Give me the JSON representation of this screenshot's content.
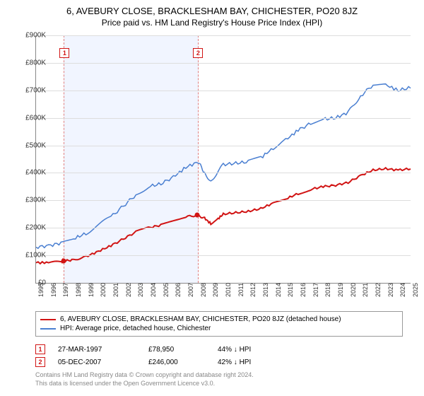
{
  "title": "6, AVEBURY CLOSE, BRACKLESHAM BAY, CHICHESTER, PO20 8JZ",
  "subtitle": "Price paid vs. HM Land Registry's House Price Index (HPI)",
  "chart": {
    "type": "line",
    "background_color": "#ffffff",
    "grid_color": "#dddddd",
    "yaxis": {
      "min": 0,
      "max": 900000,
      "tick_step": 100000,
      "tick_labels": [
        "£0",
        "£100K",
        "£200K",
        "£300K",
        "£400K",
        "£500K",
        "£600K",
        "£700K",
        "£800K",
        "£900K"
      ]
    },
    "xaxis": {
      "min": 1995,
      "max": 2025,
      "tick_step": 1,
      "tick_labels": [
        "1995",
        "1996",
        "1997",
        "1998",
        "1999",
        "2000",
        "2001",
        "2002",
        "2003",
        "2004",
        "2005",
        "2006",
        "2007",
        "2008",
        "2009",
        "2010",
        "2011",
        "2012",
        "2013",
        "2014",
        "2015",
        "2016",
        "2017",
        "2018",
        "2019",
        "2020",
        "2021",
        "2022",
        "2023",
        "2024",
        "2025"
      ]
    },
    "shaded_span": {
      "from": 1997.23,
      "to": 2007.93
    },
    "series": [
      {
        "name": "6, AVEBURY CLOSE, BRACKLESHAM BAY, CHICHESTER, PO20 8JZ (detached house)",
        "color": "#d11414",
        "line_width": 2,
        "points": [
          [
            1995.0,
            73000
          ],
          [
            1996.0,
            74000
          ],
          [
            1997.0,
            76000
          ],
          [
            1997.23,
            78950
          ],
          [
            1998.0,
            84000
          ],
          [
            1999.0,
            95000
          ],
          [
            2000.0,
            115000
          ],
          [
            2001.0,
            135000
          ],
          [
            2002.0,
            160000
          ],
          [
            2003.0,
            185000
          ],
          [
            2004.0,
            200000
          ],
          [
            2005.0,
            210000
          ],
          [
            2006.0,
            225000
          ],
          [
            2007.0,
            240000
          ],
          [
            2007.93,
            246000
          ],
          [
            2008.5,
            235000
          ],
          [
            2009.0,
            215000
          ],
          [
            2009.5,
            230000
          ],
          [
            2010.0,
            250000
          ],
          [
            2011.0,
            255000
          ],
          [
            2012.0,
            260000
          ],
          [
            2013.0,
            270000
          ],
          [
            2014.0,
            290000
          ],
          [
            2015.0,
            305000
          ],
          [
            2016.0,
            325000
          ],
          [
            2017.0,
            340000
          ],
          [
            2018.0,
            350000
          ],
          [
            2019.0,
            355000
          ],
          [
            2020.0,
            365000
          ],
          [
            2021.0,
            390000
          ],
          [
            2022.0,
            410000
          ],
          [
            2023.0,
            415000
          ],
          [
            2024.0,
            410000
          ],
          [
            2025.0,
            415000
          ]
        ]
      },
      {
        "name": "HPI: Average price, detached house, Chichester",
        "color": "#4a7fd1",
        "line_width": 1.5,
        "points": [
          [
            1995.0,
            130000
          ],
          [
            1996.0,
            135000
          ],
          [
            1997.0,
            145000
          ],
          [
            1998.0,
            160000
          ],
          [
            1999.0,
            180000
          ],
          [
            2000.0,
            210000
          ],
          [
            2001.0,
            240000
          ],
          [
            2002.0,
            280000
          ],
          [
            2003.0,
            320000
          ],
          [
            2004.0,
            350000
          ],
          [
            2005.0,
            360000
          ],
          [
            2006.0,
            385000
          ],
          [
            2007.0,
            420000
          ],
          [
            2008.0,
            440000
          ],
          [
            2008.5,
            400000
          ],
          [
            2009.0,
            370000
          ],
          [
            2009.5,
            400000
          ],
          [
            2010.0,
            430000
          ],
          [
            2011.0,
            435000
          ],
          [
            2012.0,
            440000
          ],
          [
            2013.0,
            455000
          ],
          [
            2014.0,
            490000
          ],
          [
            2015.0,
            520000
          ],
          [
            2016.0,
            555000
          ],
          [
            2017.0,
            580000
          ],
          [
            2018.0,
            595000
          ],
          [
            2019.0,
            600000
          ],
          [
            2020.0,
            620000
          ],
          [
            2021.0,
            680000
          ],
          [
            2022.0,
            720000
          ],
          [
            2023.0,
            720000
          ],
          [
            2024.0,
            700000
          ],
          [
            2025.0,
            710000
          ]
        ]
      }
    ],
    "sale_markers": [
      {
        "index": "1",
        "x": 1997.23,
        "y": 78950,
        "color": "#d11414"
      },
      {
        "index": "2",
        "x": 2007.93,
        "y": 246000,
        "color": "#d11414"
      }
    ],
    "marker_box_color": "#d11414"
  },
  "legend": {
    "items": [
      {
        "color": "#d11414",
        "label": "6, AVEBURY CLOSE, BRACKLESHAM BAY, CHICHESTER, PO20 8JZ (detached house)"
      },
      {
        "color": "#4a7fd1",
        "label": "HPI: Average price, detached house, Chichester"
      }
    ]
  },
  "sales": [
    {
      "index": "1",
      "date": "27-MAR-1997",
      "price": "£78,950",
      "rel": "44% ↓ HPI",
      "color": "#d11414"
    },
    {
      "index": "2",
      "date": "05-DEC-2007",
      "price": "£246,000",
      "rel": "42% ↓ HPI",
      "color": "#d11414"
    }
  ],
  "footer": {
    "line1": "Contains HM Land Registry data © Crown copyright and database right 2024.",
    "line2": "This data is licensed under the Open Government Licence v3.0."
  }
}
